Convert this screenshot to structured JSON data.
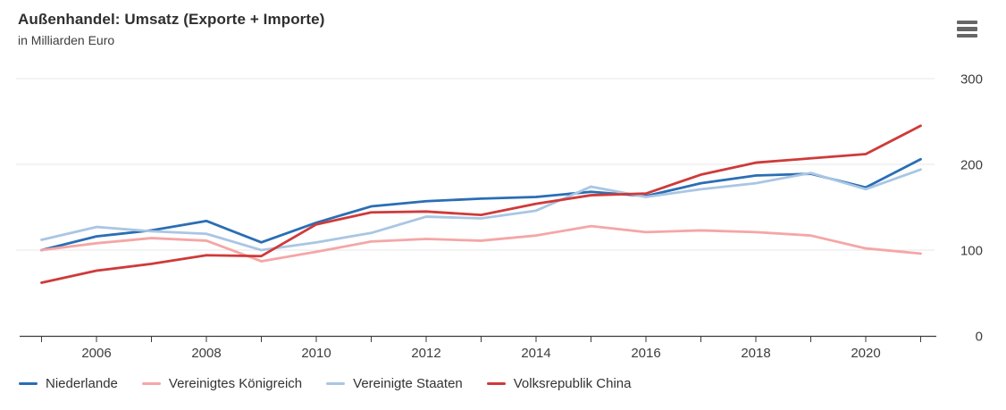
{
  "header": {
    "title": "Außenhandel: Umsatz (Exporte + Importe)",
    "subtitle": "in Milliarden Euro"
  },
  "menu": {
    "icon": "hamburger-icon"
  },
  "colors": {
    "grid": "#e7e7e7",
    "axis": "#3b3b3b",
    "axis_text": "#3d3d3d",
    "title_text": "#2f2f2f",
    "menu_icon": "#666666"
  },
  "chart_data": {
    "type": "line",
    "title": "Außenhandel: Umsatz (Exporte + Importe)",
    "subtitle": "in Milliarden Euro",
    "ylabel": "Milliarden Euro",
    "x": [
      2005,
      2006,
      2007,
      2008,
      2009,
      2010,
      2011,
      2012,
      2013,
      2014,
      2015,
      2016,
      2017,
      2018,
      2019,
      2020,
      2021
    ],
    "series": [
      {
        "name": "Niederlande",
        "color": "#2a6eb4",
        "values": [
          100,
          116,
          123,
          134,
          109,
          132,
          151,
          157,
          160,
          162,
          168,
          163,
          178,
          187,
          189,
          173,
          206
        ]
      },
      {
        "name": "Vereinigtes Königreich",
        "color": "#f5a6a6",
        "values": [
          100,
          108,
          114,
          111,
          87,
          98,
          110,
          113,
          111,
          117,
          128,
          121,
          123,
          121,
          117,
          102,
          96
        ]
      },
      {
        "name": "Vereinigte Staaten",
        "color": "#a9c6e3",
        "values": [
          112,
          127,
          122,
          119,
          100,
          109,
          120,
          139,
          137,
          146,
          174,
          162,
          171,
          178,
          190,
          171,
          194
        ]
      },
      {
        "name": "Volksrepublik China",
        "color": "#cf3a3a",
        "values": [
          62,
          76,
          84,
          94,
          93,
          130,
          144,
          145,
          141,
          154,
          164,
          166,
          188,
          202,
          207,
          212,
          245
        ]
      }
    ],
    "ylim": [
      0,
      300
    ],
    "yticks": [
      0,
      100,
      200,
      300
    ],
    "ytick_labels": [
      "0",
      "100",
      "200",
      "300"
    ],
    "xtick_years": [
      2005,
      2006,
      2007,
      2008,
      2009,
      2010,
      2011,
      2012,
      2013,
      2014,
      2015,
      2016,
      2017,
      2018,
      2019,
      2020,
      2021
    ],
    "xtick_labels": [
      "2006",
      "2008",
      "2010",
      "2012",
      "2014",
      "2016",
      "2018",
      "2020"
    ],
    "grid": "horizontal",
    "legend_position": "bottom",
    "y_axis_side": "right"
  }
}
